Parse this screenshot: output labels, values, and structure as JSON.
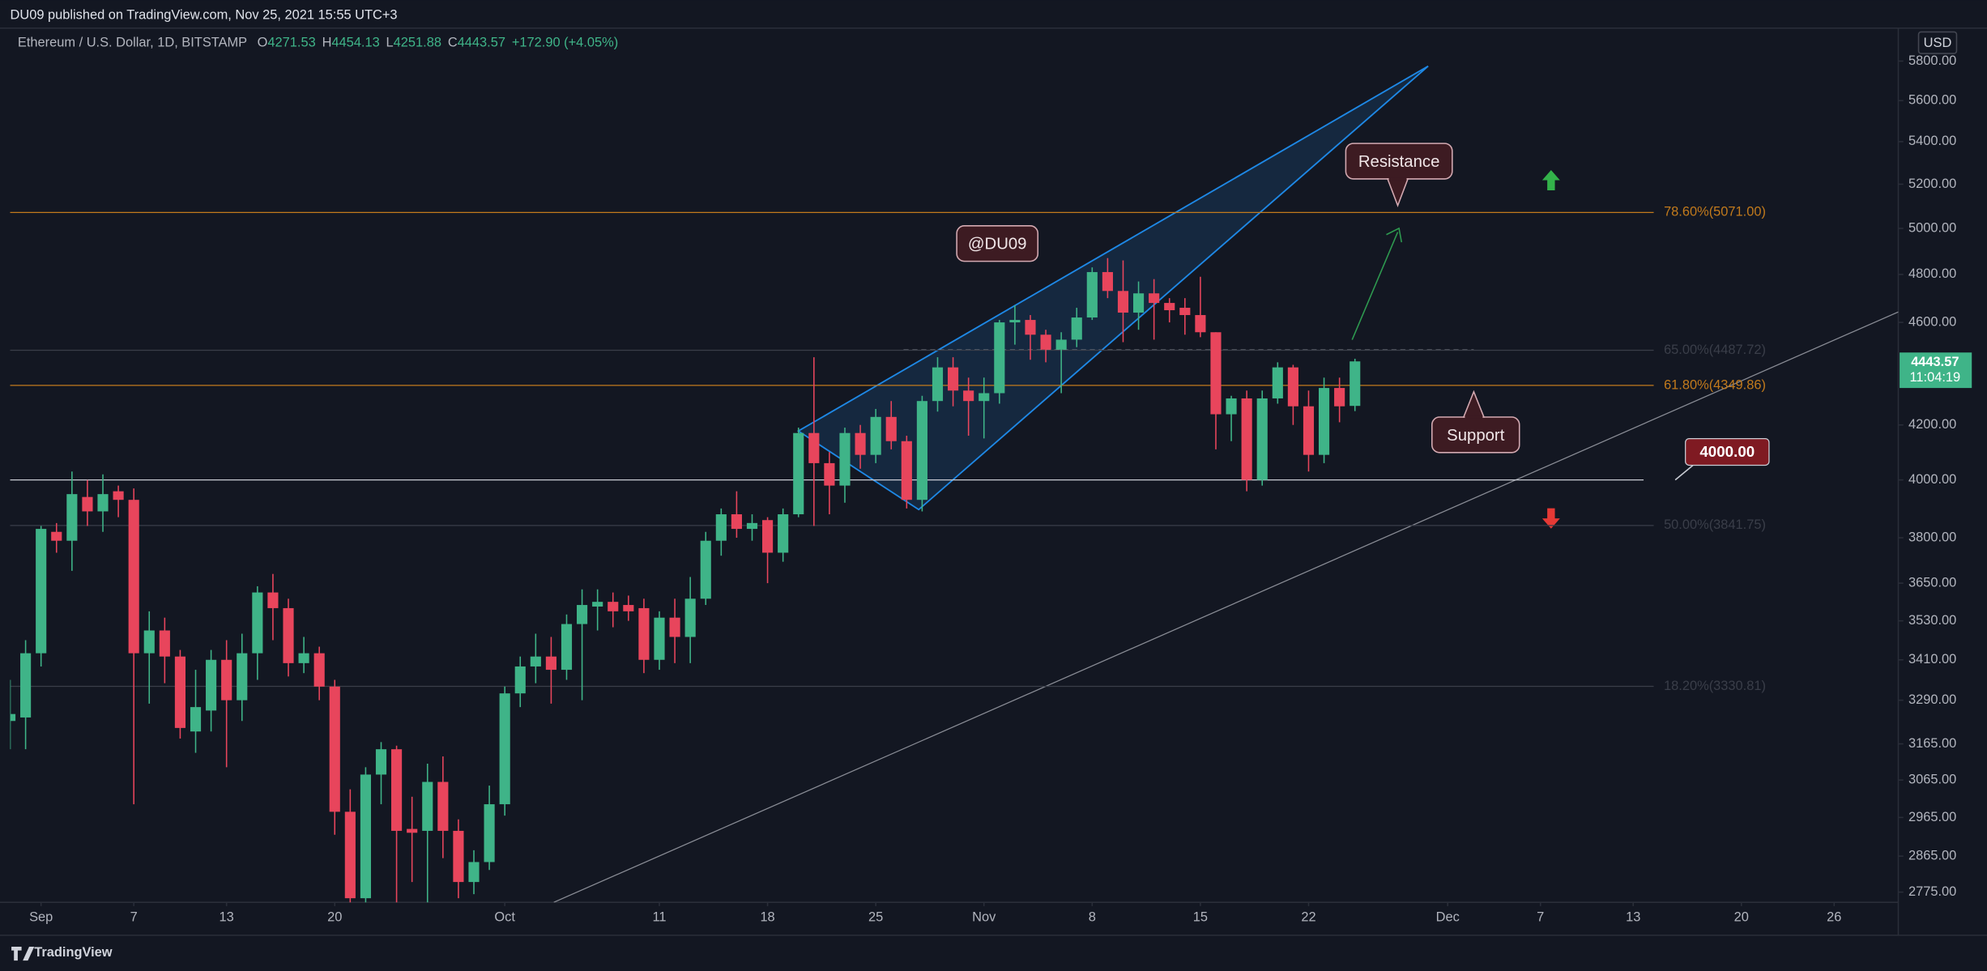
{
  "header": {
    "published": "DU09 published on TradingView.com, Nov 25, 2021 15:55 UTC+3",
    "symbol": "Ethereum / U.S. Dollar, 1D, BITSTAMP",
    "ohlc_prefixes": [
      "O",
      "H",
      "L",
      "C"
    ],
    "change": "+172.90 (+4.05%)",
    "currency": "USD",
    "countdown": "11:04:19",
    "brand": "TradingView"
  },
  "chart_data": {
    "type": "candlestick",
    "log_scale": true,
    "up_color": "#3fb488",
    "down_color": "#e8455c",
    "x": [
      -2,
      -1,
      0,
      1,
      2,
      3,
      4,
      5,
      6,
      7,
      8,
      9,
      10,
      11,
      12,
      13,
      14,
      15,
      16,
      17,
      18,
      19,
      20,
      21,
      22,
      23,
      24,
      25,
      26,
      27,
      28,
      29,
      30,
      31,
      32,
      33,
      34,
      35,
      36,
      37,
      38,
      39,
      40,
      41,
      42,
      43,
      44,
      45,
      46,
      47,
      48,
      49,
      50,
      51,
      52,
      53,
      54,
      55,
      56,
      57,
      58,
      59,
      60,
      61,
      62,
      63,
      64,
      65,
      66,
      67,
      68,
      69,
      70,
      71,
      72,
      73,
      74,
      75,
      76,
      77,
      78,
      79,
      80,
      81,
      82,
      83,
      84,
      85
    ],
    "open": [
      3230,
      3240,
      3430,
      3820,
      3790,
      3940,
      3890,
      3960,
      3930,
      3430,
      3500,
      3420,
      3200,
      3260,
      3410,
      3290,
      3430,
      3620,
      3570,
      3400,
      3430,
      3330,
      2980,
      2760,
      3080,
      3150,
      2935,
      2930,
      3060,
      2930,
      2800,
      2850,
      3000,
      3310,
      3390,
      3420,
      3380,
      3520,
      3575,
      3590,
      3580,
      3570,
      3410,
      3540,
      3480,
      3600,
      3790,
      3880,
      3830,
      3860,
      3750,
      3880,
      4170,
      4060,
      3980,
      4170,
      4090,
      4230,
      4140,
      3930,
      4290,
      4420,
      4330,
      4290,
      4320,
      4600,
      4610,
      4550,
      4490,
      4530,
      4620,
      4810,
      4730,
      4640,
      4720,
      4680,
      4660,
      4630,
      4560,
      4240,
      4300,
      4000,
      4300,
      4420,
      4270,
      4090,
      4340,
      4271.53
    ],
    "high": [
      3350,
      3470,
      3840,
      3850,
      4030,
      4000,
      4020,
      3980,
      3970,
      3560,
      3540,
      3440,
      3380,
      3440,
      3470,
      3490,
      3640,
      3680,
      3600,
      3480,
      3450,
      3350,
      3040,
      3100,
      3170,
      3160,
      3020,
      3110,
      3130,
      2960,
      2880,
      3050,
      3330,
      3420,
      3490,
      3480,
      3550,
      3630,
      3630,
      3620,
      3610,
      3600,
      3560,
      3600,
      3670,
      3820,
      3900,
      3960,
      3880,
      3870,
      3900,
      4190,
      4460,
      4100,
      4190,
      4200,
      4260,
      4290,
      4160,
      4310,
      4460,
      4460,
      4380,
      4380,
      4610,
      4670,
      4630,
      4570,
      4560,
      4660,
      4830,
      4870,
      4860,
      4770,
      4780,
      4700,
      4700,
      4790,
      4560,
      4310,
      4330,
      4330,
      4440,
      4430,
      4330,
      4380,
      4380,
      4454.13
    ],
    "low": [
      3150,
      3150,
      3390,
      3750,
      3690,
      3840,
      3820,
      3870,
      3000,
      3280,
      3340,
      3180,
      3140,
      3200,
      3100,
      3230,
      3350,
      3470,
      3360,
      3370,
      3290,
      2920,
      2740,
      2740,
      3000,
      2740,
      2800,
      2740,
      2860,
      2760,
      2770,
      2830,
      2970,
      3270,
      3340,
      3280,
      3350,
      3290,
      3500,
      3510,
      3530,
      3370,
      3380,
      3400,
      3400,
      3580,
      3740,
      3800,
      3790,
      3650,
      3720,
      3870,
      3840,
      3880,
      3920,
      4040,
      4060,
      4110,
      3900,
      3890,
      4250,
      4270,
      4160,
      4150,
      4280,
      4510,
      4450,
      4440,
      4320,
      4500,
      4610,
      4700,
      4520,
      4570,
      4530,
      4600,
      4550,
      4540,
      4110,
      4140,
      3960,
      3980,
      4280,
      4200,
      4030,
      4060,
      4210,
      4251.88
    ],
    "close": [
      3250,
      3430,
      3830,
      3790,
      3950,
      3890,
      3950,
      3930,
      3430,
      3500,
      3420,
      3210,
      3270,
      3410,
      3290,
      3430,
      3620,
      3570,
      3400,
      3430,
      3330,
      2980,
      2760,
      3080,
      3150,
      2930,
      2925,
      3060,
      2930,
      2800,
      2850,
      3000,
      3310,
      3390,
      3420,
      3380,
      3520,
      3580,
      3590,
      3560,
      3560,
      3410,
      3540,
      3480,
      3600,
      3790,
      3880,
      3830,
      3850,
      3750,
      3880,
      4170,
      4060,
      3980,
      4170,
      4090,
      4230,
      4140,
      3930,
      4290,
      4420,
      4330,
      4290,
      4320,
      4600,
      4610,
      4550,
      4490,
      4530,
      4620,
      4810,
      4730,
      4640,
      4720,
      4680,
      4650,
      4630,
      4560,
      4240,
      4300,
      4000,
      4300,
      4420,
      4270,
      4090,
      4340,
      4270,
      4443.57
    ],
    "xlim": [
      -2,
      120.15
    ],
    "ylim": [
      2750,
      5972
    ],
    "xticks": [
      {
        "value": 0,
        "label": "Sep"
      },
      {
        "value": 6,
        "label": "7"
      },
      {
        "value": 12,
        "label": "13"
      },
      {
        "value": 19,
        "label": "20"
      },
      {
        "value": 30,
        "label": "Oct"
      },
      {
        "value": 40,
        "label": "11"
      },
      {
        "value": 47,
        "label": "18"
      },
      {
        "value": 54,
        "label": "25"
      },
      {
        "value": 61,
        "label": "Nov"
      },
      {
        "value": 68,
        "label": "8"
      },
      {
        "value": 75,
        "label": "15"
      },
      {
        "value": 82,
        "label": "22"
      },
      {
        "value": 91,
        "label": "Dec"
      },
      {
        "value": 97,
        "label": "7"
      },
      {
        "value": 103,
        "label": "13"
      },
      {
        "value": 110,
        "label": "20"
      },
      {
        "value": 116,
        "label": "26"
      }
    ],
    "yticks": [
      {
        "value": 5800,
        "label": "5800.00"
      },
      {
        "value": 5600,
        "label": "5600.00"
      },
      {
        "value": 5400,
        "label": "5400.00"
      },
      {
        "value": 5200,
        "label": "5200.00"
      },
      {
        "value": 5000,
        "label": "5000.00"
      },
      {
        "value": 4800,
        "label": "4800.00"
      },
      {
        "value": 4600,
        "label": "4600.00"
      },
      {
        "value": 4200,
        "label": "4200.00"
      },
      {
        "value": 4000,
        "label": "4000.00"
      },
      {
        "value": 3800,
        "label": "3800.00"
      },
      {
        "value": 3650,
        "label": "3650.00"
      },
      {
        "value": 3530,
        "label": "3530.00"
      },
      {
        "value": 3410,
        "label": "3410.00"
      },
      {
        "value": 3290,
        "label": "3290.00"
      },
      {
        "value": 3165,
        "label": "3165.00"
      },
      {
        "value": 3065,
        "label": "3065.00"
      },
      {
        "value": 2965,
        "label": "2965.00"
      },
      {
        "value": 2865,
        "label": "2865.00"
      },
      {
        "value": 2775,
        "label": "2775.00"
      }
    ],
    "grid": false,
    "fib_levels": [
      {
        "value": 5071,
        "label": "78.60%(5071.00)",
        "color": "#c27a1c"
      },
      {
        "value": 4487.72,
        "label": "65.00%(4487.72)",
        "color": "#3a3e49"
      },
      {
        "value": 4349.86,
        "label": "61.80%(4349.86)",
        "color": "#c27a1c"
      },
      {
        "value": 3841.75,
        "label": "50.00%(3841.75)",
        "color": "#3a3e49"
      },
      {
        "value": 3330.81,
        "label": "18.20%(3330.81)",
        "color": "#3a3e49"
      }
    ],
    "hline": {
      "value": 4000,
      "label": "4000.00"
    },
    "annotations": [
      "@DU09",
      "Resistance",
      "Support"
    ]
  }
}
